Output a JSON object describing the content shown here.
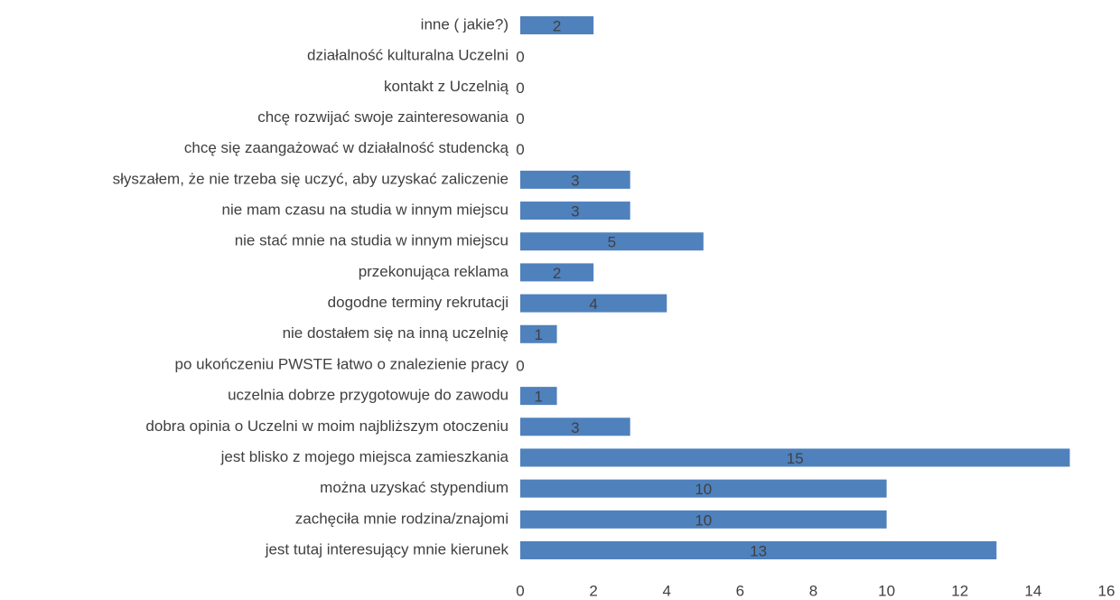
{
  "chart_data": {
    "type": "hbar",
    "categories": [
      "jest tutaj interesujący mnie kierunek",
      "zachęciła mnie rodzina/znajomi",
      "można uzyskać stypendium",
      "jest blisko z mojego miejsca zamieszkania",
      "dobra opinia o Uczelni w moim najbliższym otoczeniu",
      "uczelnia dobrze przygotowuje do zawodu",
      "po ukończeniu PWSTE łatwo o  znalezienie pracy",
      "nie dostałem się na inną uczelnię",
      "dogodne terminy rekrutacji",
      "przekonująca reklama",
      "nie stać mnie na studia w innym miejscu",
      "nie mam czasu na studia w innym miejscu",
      "słyszałem, że nie trzeba się uczyć, aby uzyskać zaliczenie",
      "chcę się zaangażować w działalność studencką",
      "chcę rozwijać swoje zainteresowania",
      "kontakt z Uczelnią",
      "działalność kulturalna Uczelni",
      "inne ( jakie?)"
    ],
    "values": [
      13,
      10,
      10,
      15,
      3,
      1,
      0,
      1,
      4,
      2,
      5,
      3,
      3,
      0,
      0,
      0,
      0,
      2
    ],
    "color": "#4f81bd",
    "xlim": [
      0,
      16
    ],
    "xticks": [
      0,
      2,
      4,
      6,
      8,
      10,
      12,
      14,
      16
    ],
    "grid": false
  }
}
